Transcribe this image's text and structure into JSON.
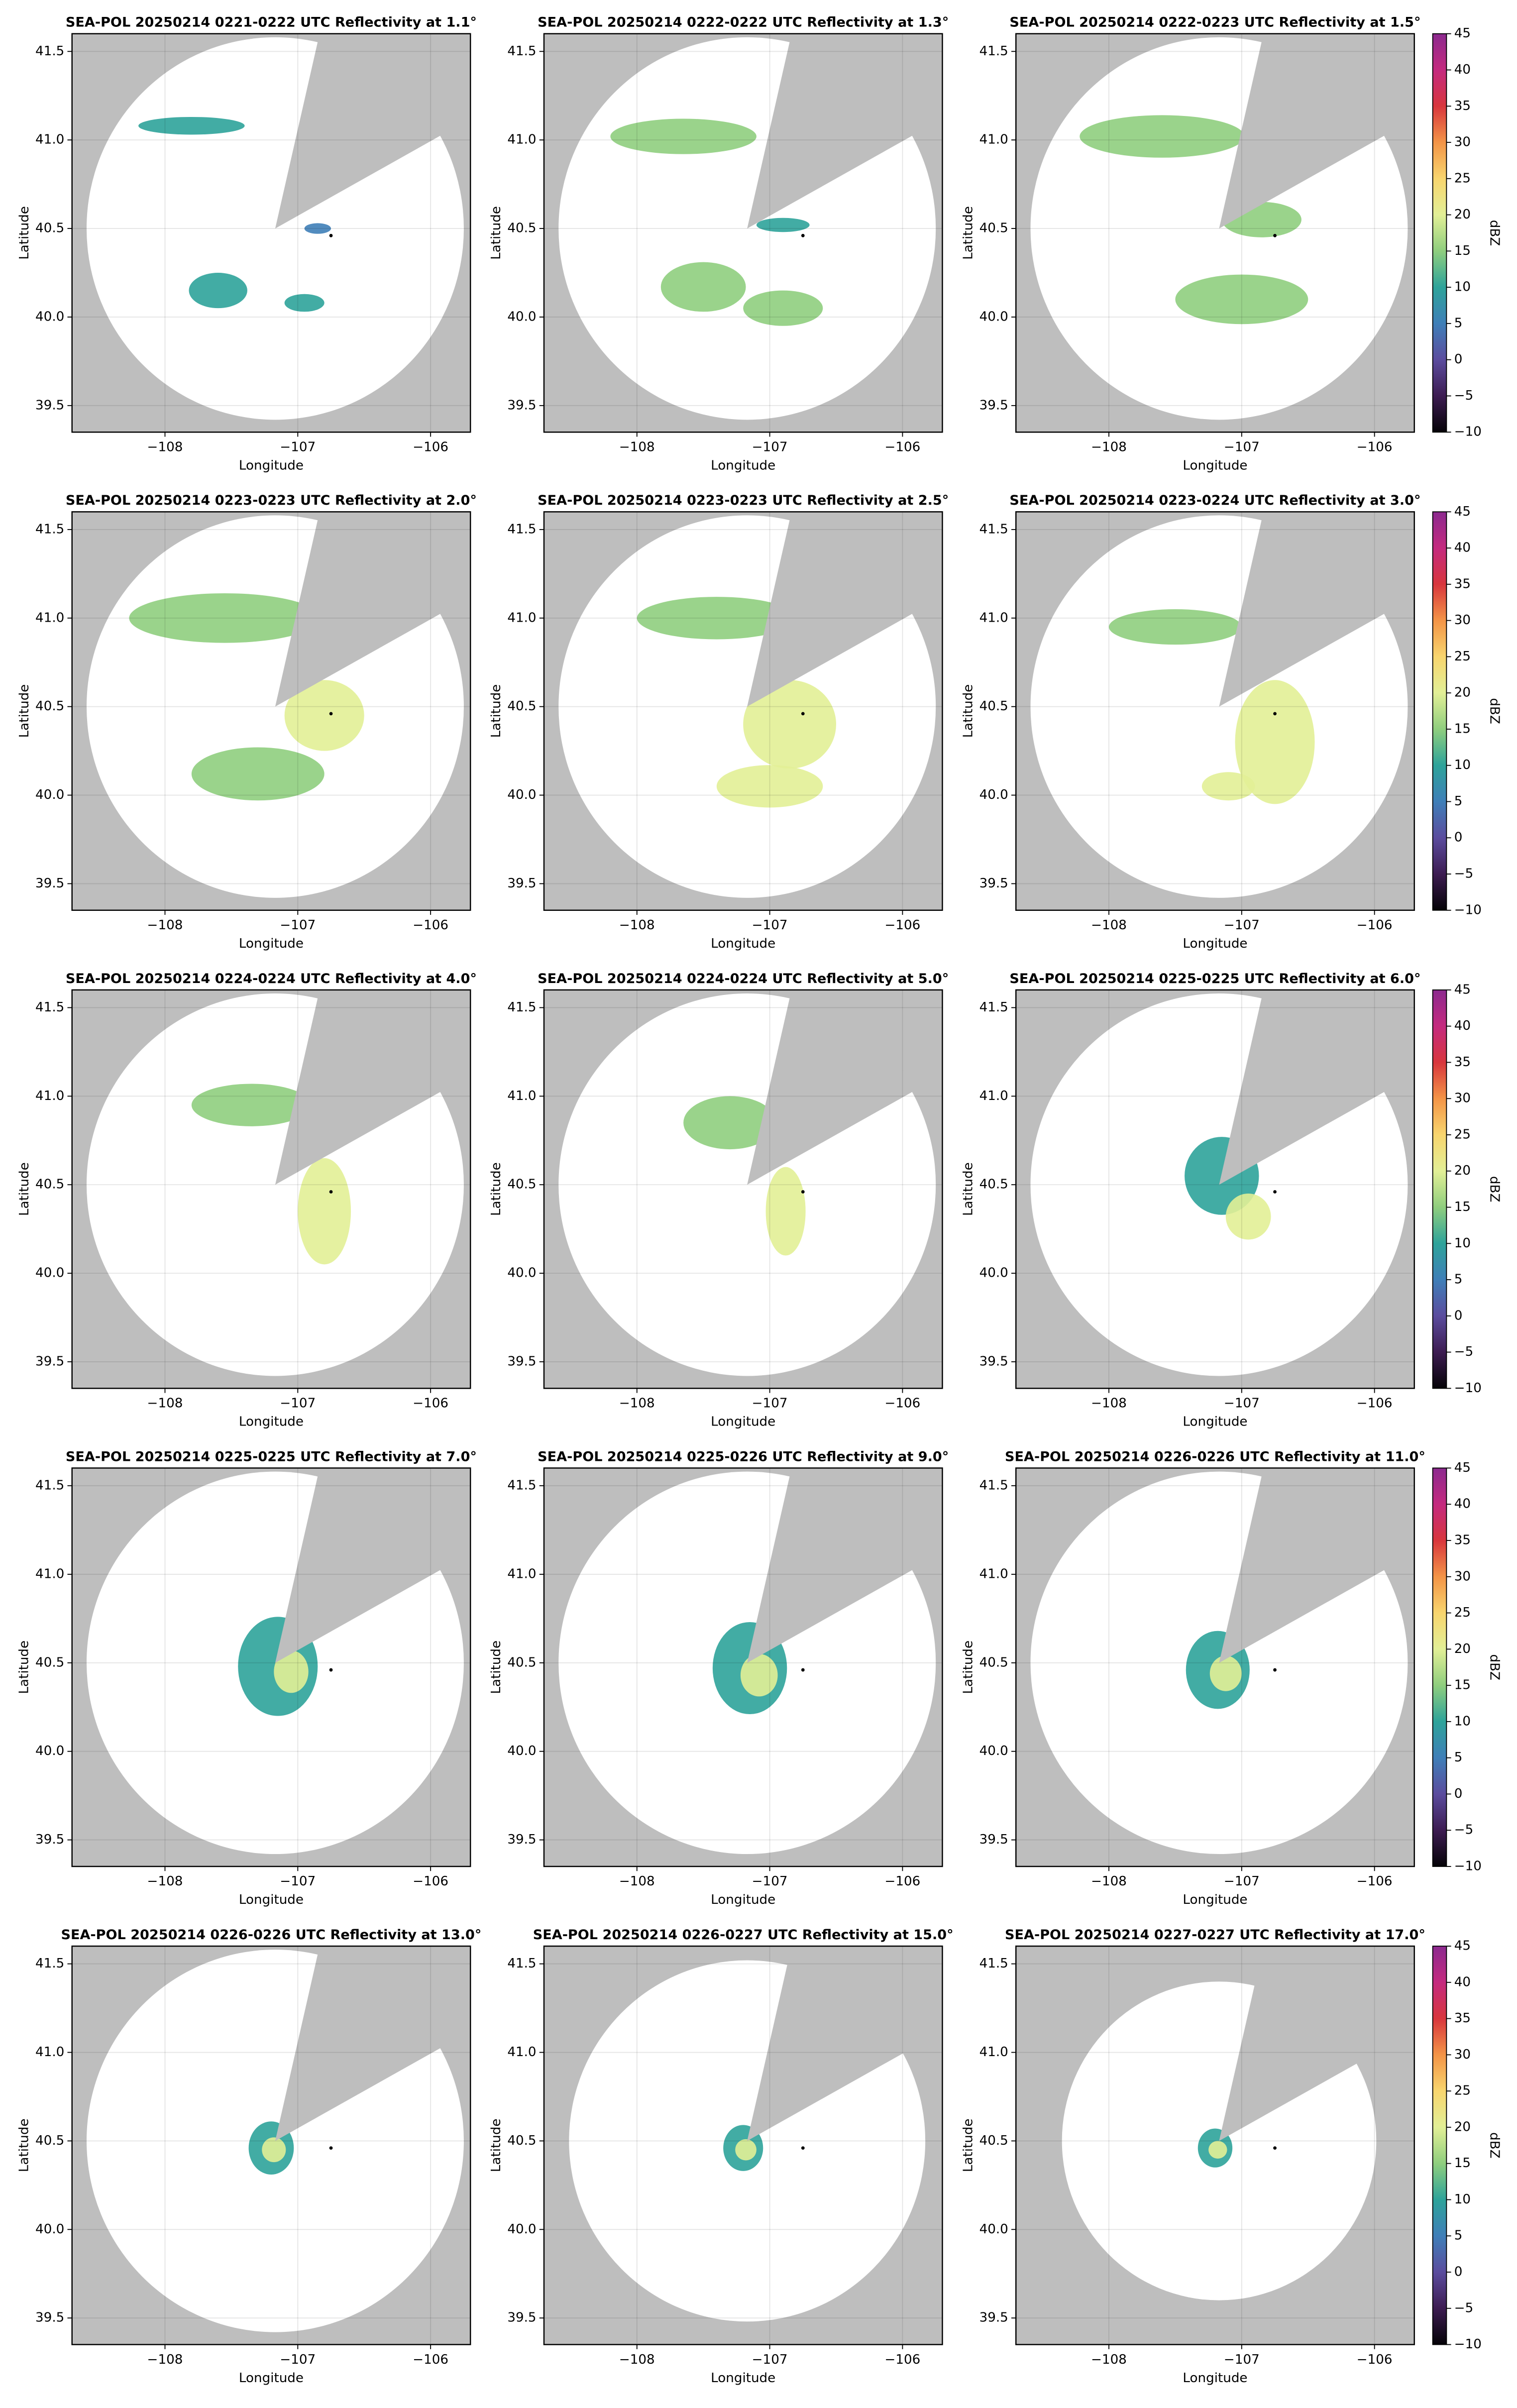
{
  "radar": {
    "lon": -107.17,
    "lat": 40.5,
    "blocked_azimuth": [
      13,
      61
    ]
  },
  "marker": {
    "lon": -106.75,
    "lat": 40.46
  },
  "colorbar": {
    "label": "dBZ",
    "lim": [
      -10,
      45
    ],
    "ticks": [
      {
        "value": -10,
        "label": "−10"
      },
      {
        "value": -5,
        "label": "−5"
      },
      0,
      5,
      10,
      15,
      20,
      25,
      30,
      35,
      40,
      45
    ],
    "colors": [
      "#050307",
      "#3d1c52",
      "#5b4c9e",
      "#3f7fb8",
      "#2ea39a",
      "#8fce7e",
      "#e2ef96",
      "#f8d56e",
      "#f39447",
      "#d8363d",
      "#c42a7f",
      "#8c2a8f"
    ]
  },
  "chart_data": [
    {
      "type": "radar-ppi",
      "title": "SEA-POL 20250214 0221-0222 UTC Reflectivity at 1.1°",
      "xlabel": "Longitude",
      "ylabel": "Latitude",
      "xlim": [
        -108.7,
        -105.7
      ],
      "ylim": [
        39.35,
        41.6
      ],
      "xticks": [
        {
          "value": -108,
          "label": "−108"
        },
        {
          "value": -107,
          "label": "−107"
        },
        {
          "value": -106,
          "label": "−106"
        }
      ],
      "yticks": [
        39.5,
        {
          "value": 40,
          "label": "40.0"
        },
        40.5,
        {
          "value": 41,
          "label": "41.0"
        },
        41.5
      ],
      "grid": true,
      "range": 1.08,
      "echoes": [
        {
          "lon": -107.8,
          "lat": 41.08,
          "width": 0.4,
          "height": 0.05,
          "dbz": 12
        },
        {
          "lon": -107.6,
          "lat": 40.15,
          "width": 0.22,
          "height": 0.1,
          "dbz": 12
        },
        {
          "lon": -106.95,
          "lat": 40.08,
          "width": 0.15,
          "height": 0.05,
          "dbz": 12
        },
        {
          "lon": -106.85,
          "lat": 40.5,
          "width": 0.1,
          "height": 0.03,
          "dbz": 6
        }
      ]
    },
    {
      "type": "radar-ppi",
      "title": "SEA-POL 20250214 0222-0222 UTC Reflectivity at 1.3°",
      "xlabel": "Longitude",
      "ylabel": "Latitude",
      "xlim": [
        -108.7,
        -105.7
      ],
      "ylim": [
        39.35,
        41.6
      ],
      "xticks": [
        {
          "value": -108,
          "label": "−108"
        },
        {
          "value": -107,
          "label": "−107"
        },
        {
          "value": -106,
          "label": "−106"
        }
      ],
      "yticks": [
        39.5,
        {
          "value": 40,
          "label": "40.0"
        },
        40.5,
        {
          "value": 41,
          "label": "41.0"
        },
        41.5
      ],
      "grid": true,
      "range": 1.08,
      "echoes": [
        {
          "lon": -107.65,
          "lat": 41.02,
          "width": 0.55,
          "height": 0.1,
          "dbz": 14
        },
        {
          "lon": -107.5,
          "lat": 40.17,
          "width": 0.32,
          "height": 0.14,
          "dbz": 15
        },
        {
          "lon": -106.9,
          "lat": 40.52,
          "width": 0.2,
          "height": 0.04,
          "dbz": 8
        },
        {
          "lon": -106.9,
          "lat": 40.05,
          "width": 0.3,
          "height": 0.1,
          "dbz": 13
        }
      ]
    },
    {
      "type": "radar-ppi",
      "title": "SEA-POL 20250214 0222-0223 UTC Reflectivity at 1.5°",
      "xlabel": "Longitude",
      "ylabel": "Latitude",
      "xlim": [
        -108.7,
        -105.7
      ],
      "ylim": [
        39.35,
        41.6
      ],
      "xticks": [
        {
          "value": -108,
          "label": "−108"
        },
        {
          "value": -107,
          "label": "−107"
        },
        {
          "value": -106,
          "label": "−106"
        }
      ],
      "yticks": [
        39.5,
        {
          "value": 40,
          "label": "40.0"
        },
        40.5,
        {
          "value": 41,
          "label": "41.0"
        },
        41.5
      ],
      "grid": true,
      "range": 1.08,
      "colorbar": true,
      "echoes": [
        {
          "lon": -107.6,
          "lat": 41.02,
          "width": 0.62,
          "height": 0.12,
          "dbz": 16
        },
        {
          "lon": -106.85,
          "lat": 40.55,
          "width": 0.3,
          "height": 0.1,
          "dbz": 13
        },
        {
          "lon": -107.0,
          "lat": 40.1,
          "width": 0.5,
          "height": 0.14,
          "dbz": 13
        }
      ]
    },
    {
      "type": "radar-ppi",
      "title": "SEA-POL 20250214 0223-0223 UTC Reflectivity at 2.0°",
      "xlabel": "Longitude",
      "ylabel": "Latitude",
      "xlim": [
        -108.7,
        -105.7
      ],
      "ylim": [
        39.35,
        41.6
      ],
      "xticks": [
        {
          "value": -108,
          "label": "−108"
        },
        {
          "value": -107,
          "label": "−107"
        },
        {
          "value": -106,
          "label": "−106"
        }
      ],
      "yticks": [
        39.5,
        {
          "value": 40,
          "label": "40.0"
        },
        40.5,
        {
          "value": 41,
          "label": "41.0"
        },
        41.5
      ],
      "grid": true,
      "range": 1.08,
      "echoes": [
        {
          "lon": -107.55,
          "lat": 41.0,
          "width": 0.72,
          "height": 0.14,
          "dbz": 16
        },
        {
          "lon": -106.8,
          "lat": 40.45,
          "width": 0.3,
          "height": 0.2,
          "dbz": 20
        },
        {
          "lon": -107.3,
          "lat": 40.12,
          "width": 0.5,
          "height": 0.15,
          "dbz": 16
        }
      ]
    },
    {
      "type": "radar-ppi",
      "title": "SEA-POL 20250214 0223-0223 UTC Reflectivity at 2.5°",
      "xlabel": "Longitude",
      "ylabel": "Latitude",
      "xlim": [
        -108.7,
        -105.7
      ],
      "ylim": [
        39.35,
        41.6
      ],
      "xticks": [
        {
          "value": -108,
          "label": "−108"
        },
        {
          "value": -107,
          "label": "−107"
        },
        {
          "value": -106,
          "label": "−106"
        }
      ],
      "yticks": [
        39.5,
        {
          "value": 40,
          "label": "40.0"
        },
        40.5,
        {
          "value": 41,
          "label": "41.0"
        },
        41.5
      ],
      "grid": true,
      "range": 1.08,
      "echoes": [
        {
          "lon": -107.4,
          "lat": 41.0,
          "width": 0.6,
          "height": 0.12,
          "dbz": 15
        },
        {
          "lon": -106.85,
          "lat": 40.4,
          "width": 0.35,
          "height": 0.25,
          "dbz": 20
        },
        {
          "lon": -107.0,
          "lat": 40.05,
          "width": 0.4,
          "height": 0.12,
          "dbz": 20
        }
      ]
    },
    {
      "type": "radar-ppi",
      "title": "SEA-POL 20250214 0223-0224 UTC Reflectivity at 3.0°",
      "xlabel": "Longitude",
      "ylabel": "Latitude",
      "xlim": [
        -108.7,
        -105.7
      ],
      "ylim": [
        39.35,
        41.6
      ],
      "xticks": [
        {
          "value": -108,
          "label": "−108"
        },
        {
          "value": -107,
          "label": "−107"
        },
        {
          "value": -106,
          "label": "−106"
        }
      ],
      "yticks": [
        39.5,
        {
          "value": 40,
          "label": "40.0"
        },
        40.5,
        {
          "value": 41,
          "label": "41.0"
        },
        41.5
      ],
      "grid": true,
      "range": 1.08,
      "colorbar": true,
      "echoes": [
        {
          "lon": -107.5,
          "lat": 40.95,
          "width": 0.5,
          "height": 0.1,
          "dbz": 14
        },
        {
          "lon": -106.75,
          "lat": 40.3,
          "width": 0.3,
          "height": 0.35,
          "dbz": 20
        },
        {
          "lon": -107.1,
          "lat": 40.05,
          "width": 0.2,
          "height": 0.08,
          "dbz": 20
        }
      ]
    },
    {
      "type": "radar-ppi",
      "title": "SEA-POL 20250214 0224-0224 UTC Reflectivity at 4.0°",
      "xlabel": "Longitude",
      "ylabel": "Latitude",
      "xlim": [
        -108.7,
        -105.7
      ],
      "ylim": [
        39.35,
        41.6
      ],
      "xticks": [
        {
          "value": -108,
          "label": "−108"
        },
        {
          "value": -107,
          "label": "−107"
        },
        {
          "value": -106,
          "label": "−106"
        }
      ],
      "yticks": [
        39.5,
        {
          "value": 40,
          "label": "40.0"
        },
        40.5,
        {
          "value": 41,
          "label": "41.0"
        },
        41.5
      ],
      "grid": true,
      "range": 1.08,
      "echoes": [
        {
          "lon": -107.35,
          "lat": 40.95,
          "width": 0.45,
          "height": 0.12,
          "dbz": 15
        },
        {
          "lon": -106.8,
          "lat": 40.35,
          "width": 0.2,
          "height": 0.3,
          "dbz": 20
        }
      ]
    },
    {
      "type": "radar-ppi",
      "title": "SEA-POL 20250214 0224-0224 UTC Reflectivity at 5.0°",
      "xlabel": "Longitude",
      "ylabel": "Latitude",
      "xlim": [
        -108.7,
        -105.7
      ],
      "ylim": [
        39.35,
        41.6
      ],
      "xticks": [
        {
          "value": -108,
          "label": "−108"
        },
        {
          "value": -107,
          "label": "−107"
        },
        {
          "value": -106,
          "label": "−106"
        }
      ],
      "yticks": [
        39.5,
        {
          "value": 40,
          "label": "40.0"
        },
        40.5,
        {
          "value": 41,
          "label": "41.0"
        },
        41.5
      ],
      "grid": true,
      "range": 1.08,
      "echoes": [
        {
          "lon": -107.3,
          "lat": 40.85,
          "width": 0.35,
          "height": 0.15,
          "dbz": 14
        },
        {
          "lon": -106.88,
          "lat": 40.35,
          "width": 0.15,
          "height": 0.25,
          "dbz": 19
        }
      ]
    },
    {
      "type": "radar-ppi",
      "title": "SEA-POL 20250214 0225-0225 UTC Reflectivity at 6.0°",
      "xlabel": "Longitude",
      "ylabel": "Latitude",
      "xlim": [
        -108.7,
        -105.7
      ],
      "ylim": [
        39.35,
        41.6
      ],
      "xticks": [
        {
          "value": -108,
          "label": "−108"
        },
        {
          "value": -107,
          "label": "−107"
        },
        {
          "value": -106,
          "label": "−106"
        }
      ],
      "yticks": [
        39.5,
        {
          "value": 40,
          "label": "40.0"
        },
        40.5,
        {
          "value": 41,
          "label": "41.0"
        },
        41.5
      ],
      "grid": true,
      "range": 1.08,
      "colorbar": true,
      "echoes": [
        {
          "lon": -107.15,
          "lat": 40.55,
          "width": 0.28,
          "height": 0.22,
          "dbz": 12
        },
        {
          "lon": -106.95,
          "lat": 40.32,
          "width": 0.17,
          "height": 0.13,
          "dbz": 18
        }
      ]
    },
    {
      "type": "radar-ppi",
      "title": "SEA-POL 20250214 0225-0225 UTC Reflectivity at 7.0°",
      "xlabel": "Longitude",
      "ylabel": "Latitude",
      "xlim": [
        -108.7,
        -105.7
      ],
      "ylim": [
        39.35,
        41.6
      ],
      "xticks": [
        {
          "value": -108,
          "label": "−108"
        },
        {
          "value": -107,
          "label": "−107"
        },
        {
          "value": -106,
          "label": "−106"
        }
      ],
      "yticks": [
        39.5,
        {
          "value": 40,
          "label": "40.0"
        },
        40.5,
        {
          "value": 41,
          "label": "41.0"
        },
        41.5
      ],
      "grid": true,
      "range": 1.08,
      "echoes": [
        {
          "lon": -107.15,
          "lat": 40.48,
          "width": 0.3,
          "height": 0.28,
          "dbz": 12
        },
        {
          "lon": -107.05,
          "lat": 40.45,
          "width": 0.13,
          "height": 0.12,
          "dbz": 20
        }
      ]
    },
    {
      "type": "radar-ppi",
      "title": "SEA-POL 20250214 0225-0226 UTC Reflectivity at 9.0°",
      "xlabel": "Longitude",
      "ylabel": "Latitude",
      "xlim": [
        -108.7,
        -105.7
      ],
      "ylim": [
        39.35,
        41.6
      ],
      "xticks": [
        {
          "value": -108,
          "label": "−108"
        },
        {
          "value": -107,
          "label": "−107"
        },
        {
          "value": -106,
          "label": "−106"
        }
      ],
      "yticks": [
        39.5,
        {
          "value": 40,
          "label": "40.0"
        },
        40.5,
        {
          "value": 41,
          "label": "41.0"
        },
        41.5
      ],
      "grid": true,
      "range": 1.08,
      "echoes": [
        {
          "lon": -107.15,
          "lat": 40.47,
          "width": 0.28,
          "height": 0.26,
          "dbz": 11
        },
        {
          "lon": -107.08,
          "lat": 40.43,
          "width": 0.14,
          "height": 0.12,
          "dbz": 21
        }
      ]
    },
    {
      "type": "radar-ppi",
      "title": "SEA-POL 20250214 0226-0226 UTC Reflectivity at 11.0°",
      "xlabel": "Longitude",
      "ylabel": "Latitude",
      "xlim": [
        -108.7,
        -105.7
      ],
      "ylim": [
        39.35,
        41.6
      ],
      "xticks": [
        {
          "value": -108,
          "label": "−108"
        },
        {
          "value": -107,
          "label": "−107"
        },
        {
          "value": -106,
          "label": "−106"
        }
      ],
      "yticks": [
        39.5,
        {
          "value": 40,
          "label": "40.0"
        },
        40.5,
        {
          "value": 41,
          "label": "41.0"
        },
        41.5
      ],
      "grid": true,
      "range": 1.08,
      "colorbar": true,
      "echoes": [
        {
          "lon": -107.18,
          "lat": 40.46,
          "width": 0.24,
          "height": 0.22,
          "dbz": 10
        },
        {
          "lon": -107.12,
          "lat": 40.44,
          "width": 0.12,
          "height": 0.1,
          "dbz": 21
        }
      ]
    },
    {
      "type": "radar-ppi",
      "title": "SEA-POL 20250214 0226-0226 UTC Reflectivity at 13.0°",
      "xlabel": "Longitude",
      "ylabel": "Latitude",
      "xlim": [
        -108.7,
        -105.7
      ],
      "ylim": [
        39.35,
        41.6
      ],
      "xticks": [
        {
          "value": -108,
          "label": "−108"
        },
        {
          "value": -107,
          "label": "−107"
        },
        {
          "value": -106,
          "label": "−106"
        }
      ],
      "yticks": [
        39.5,
        {
          "value": 40,
          "label": "40.0"
        },
        40.5,
        {
          "value": 41,
          "label": "41.0"
        },
        41.5
      ],
      "grid": true,
      "range": 1.08,
      "echoes": [
        {
          "lon": -107.2,
          "lat": 40.46,
          "width": 0.17,
          "height": 0.15,
          "dbz": 8
        },
        {
          "lon": -107.18,
          "lat": 40.45,
          "width": 0.09,
          "height": 0.07,
          "dbz": 22
        }
      ]
    },
    {
      "type": "radar-ppi",
      "title": "SEA-POL 20250214 0226-0227 UTC Reflectivity at 15.0°",
      "xlabel": "Longitude",
      "ylabel": "Latitude",
      "xlim": [
        -108.7,
        -105.7
      ],
      "ylim": [
        39.35,
        41.6
      ],
      "xticks": [
        {
          "value": -108,
          "label": "−108"
        },
        {
          "value": -107,
          "label": "−107"
        },
        {
          "value": -106,
          "label": "−106"
        }
      ],
      "yticks": [
        39.5,
        {
          "value": 40,
          "label": "40.0"
        },
        40.5,
        {
          "value": 41,
          "label": "41.0"
        },
        41.5
      ],
      "grid": true,
      "range": 1.02,
      "echoes": [
        {
          "lon": -107.2,
          "lat": 40.46,
          "width": 0.15,
          "height": 0.13,
          "dbz": 8
        },
        {
          "lon": -107.18,
          "lat": 40.45,
          "width": 0.08,
          "height": 0.06,
          "dbz": 22
        }
      ]
    },
    {
      "type": "radar-ppi",
      "title": "SEA-POL 20250214 0227-0227 UTC Reflectivity at 17.0°",
      "xlabel": "Longitude",
      "ylabel": "Latitude",
      "xlim": [
        -108.7,
        -105.7
      ],
      "ylim": [
        39.35,
        41.6
      ],
      "xticks": [
        {
          "value": -108,
          "label": "−108"
        },
        {
          "value": -107,
          "label": "−107"
        },
        {
          "value": -106,
          "label": "−106"
        }
      ],
      "yticks": [
        39.5,
        {
          "value": 40,
          "label": "40.0"
        },
        40.5,
        {
          "value": 41,
          "label": "41.0"
        },
        41.5
      ],
      "grid": true,
      "range": 0.9,
      "colorbar": true,
      "echoes": [
        {
          "lon": -107.2,
          "lat": 40.46,
          "width": 0.13,
          "height": 0.11,
          "dbz": 8
        },
        {
          "lon": -107.18,
          "lat": 40.45,
          "width": 0.07,
          "height": 0.05,
          "dbz": 22
        }
      ]
    }
  ]
}
